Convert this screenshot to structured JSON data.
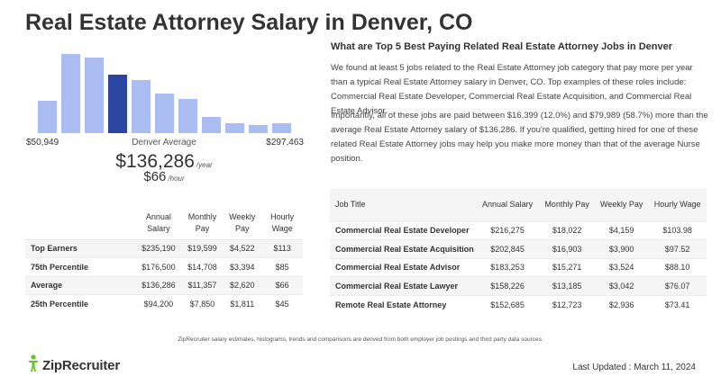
{
  "page": {
    "title": "Real Estate Attorney Salary in Denver, CO"
  },
  "histogram": {
    "min_label": "$50,949",
    "max_label": "$297,463",
    "center_label": "Denver Average",
    "avg_annual": "$136,286",
    "annual_unit": "/year",
    "avg_hourly": "$66",
    "hourly_unit": "/hour",
    "bar_color": "#aabcf0",
    "highlight_color": "#2a46a0",
    "highlight_index": 3,
    "bin_levels": [
      0.41,
      1.0,
      0.95,
      0.74,
      0.67,
      0.5,
      0.43,
      0.21,
      0.12,
      0.1,
      0.12
    ]
  },
  "related": {
    "heading": "What are Top 5 Best Paying Related Real Estate Attorney Jobs in Denver",
    "paragraph1": "We found at least 5 jobs related to the Real Estate Attorney job category that pay more per year than a typical Real Estate Attorney salary in Denver, CO. Top examples of these roles include: Commercial Real Estate Developer, Commercial Real Estate Acquisition, and Commercial Real Estate Advisor.",
    "paragraph2": "Importantly, all of these jobs are paid between $16,399 (12.0%) and $79,989 (58.7%) more than the average Real Estate Attorney salary of $136,286. If you're qualified, getting hired for one of these related Real Estate Attorney jobs may help you make more money than that of the average Nurse position."
  },
  "percentile_table": {
    "headers": [
      "",
      "Annual Salary",
      "Monthly Pay",
      "Weekly Pay",
      "Hourly Wage"
    ],
    "rows": [
      {
        "label": "Top Earners",
        "annual": "$235,190",
        "monthly": "$19,599",
        "weekly": "$4,522",
        "hourly": "$113"
      },
      {
        "label": "75th Percentile",
        "annual": "$176,500",
        "monthly": "$14,708",
        "weekly": "$3,394",
        "hourly": "$85"
      },
      {
        "label": "Average",
        "annual": "$136,286",
        "monthly": "$11,357",
        "weekly": "$2,620",
        "hourly": "$66"
      },
      {
        "label": "25th Percentile",
        "annual": "$94,200",
        "monthly": "$7,850",
        "weekly": "$1,811",
        "hourly": "$45"
      }
    ]
  },
  "jobs_table": {
    "headers": [
      "Job Title",
      "Annual Salary",
      "Monthly Pay",
      "Weekly Pay",
      "Hourly Wage"
    ],
    "rows": [
      {
        "title": "Commercial Real Estate Developer",
        "annual": "$216,275",
        "monthly": "$18,022",
        "weekly": "$4,159",
        "hourly": "$103.98"
      },
      {
        "title": "Commercial Real Estate Acquisition",
        "annual": "$202,845",
        "monthly": "$16,903",
        "weekly": "$3,900",
        "hourly": "$97.52"
      },
      {
        "title": "Commercial Real Estate Advisor",
        "annual": "$183,253",
        "monthly": "$15,271",
        "weekly": "$3,524",
        "hourly": "$88.10"
      },
      {
        "title": "Commercial Real Estate Lawyer",
        "annual": "$158,226",
        "monthly": "$13,185",
        "weekly": "$3,042",
        "hourly": "$76.07"
      },
      {
        "title": "Remote Real Estate Attorney",
        "annual": "$152,685",
        "monthly": "$12,723",
        "weekly": "$2,936",
        "hourly": "$73.41"
      }
    ]
  },
  "footer": {
    "disclaimer": "ZipRecruiter salary estimates, histograms, trends and comparisons are derived from both employer job postings and third party data sources.",
    "logo_text": "ZipRecruiter",
    "last_updated": "Last Updated : March 11, 2024",
    "logo_color": "#6bbf2a"
  }
}
